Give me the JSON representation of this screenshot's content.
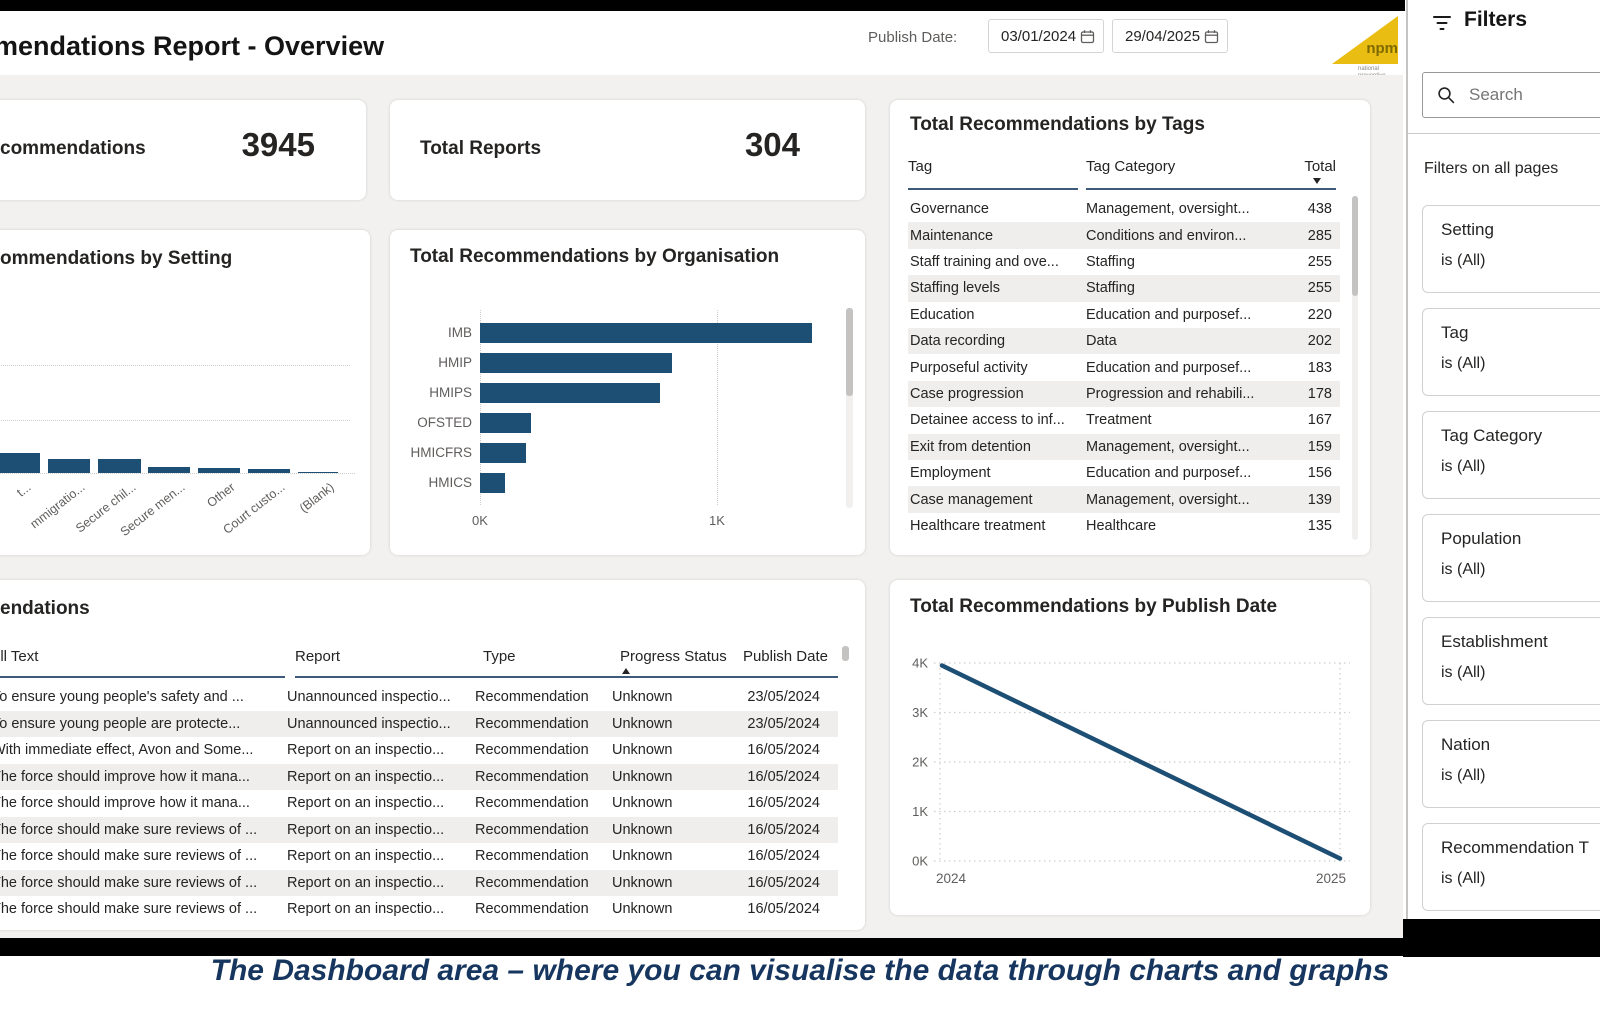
{
  "header": {
    "title": "mendations Report - Overview",
    "publish_date_label": "Publish Date:",
    "date_from": "03/01/2024",
    "date_to": "29/04/2025",
    "logo": {
      "text": "npm",
      "subtext": "national preventive mechanism"
    }
  },
  "kpi_cards": [
    {
      "label": "commendations",
      "value": "3945"
    },
    {
      "label": "Total Reports",
      "value": "304"
    }
  ],
  "tags_table": {
    "title": "Total Recommendations by Tags",
    "columns": [
      "Tag",
      "Tag Category",
      "Total"
    ],
    "sort": {
      "column": "Total",
      "direction": "desc"
    },
    "rows": [
      [
        "Governance",
        "Management, oversight...",
        "438"
      ],
      [
        "Maintenance",
        "Conditions and environ...",
        "285"
      ],
      [
        "Staff training and ove...",
        "Staffing",
        "255"
      ],
      [
        "Staffing levels",
        "Staffing",
        "255"
      ],
      [
        "Education",
        "Education and purposef...",
        "220"
      ],
      [
        "Data recording",
        "Data",
        "202"
      ],
      [
        "Purposeful activity",
        "Education and purposef...",
        "183"
      ],
      [
        "Case progression",
        "Progression and rehabili...",
        "178"
      ],
      [
        "Detainee access to inf...",
        "Treatment",
        "167"
      ],
      [
        "Exit from detention",
        "Management, oversight...",
        "159"
      ],
      [
        "Employment",
        "Education and purposef...",
        "156"
      ],
      [
        "Case management",
        "Management, oversight...",
        "139"
      ],
      [
        "Healthcare treatment",
        "Healthcare",
        "135"
      ]
    ]
  },
  "chart_data": [
    {
      "type": "bar",
      "title": "ommendations by Setting",
      "categories": [
        "t...",
        "mmigratio...",
        "Secure chil...",
        "Secure men...",
        "Other",
        "Court custo...",
        "(Blank)"
      ],
      "values": [
        380,
        265,
        265,
        115,
        95,
        75,
        20
      ],
      "ylim": [
        0,
        2000
      ],
      "grid": "horizontal-dotted",
      "note": "chart cropped at left edge of screenshot"
    },
    {
      "type": "bar-horizontal",
      "title": "Total Recommendations by Organisation",
      "categories": [
        "IMB",
        "HMIP",
        "HMIPS",
        "OFSTED",
        "HMICFRS",
        "HMICS"
      ],
      "values": [
        1400,
        810,
        760,
        215,
        195,
        105
      ],
      "xticks": [
        "0K",
        "1K"
      ],
      "xlim": [
        0,
        2000
      ],
      "grid": "vertical-dotted"
    },
    {
      "type": "line",
      "title": "Total Recommendations by Publish Date",
      "x": [
        "2024",
        "2025"
      ],
      "values": [
        3950,
        50
      ],
      "yticks": [
        "4K",
        "3K",
        "2K",
        "1K",
        "0K"
      ],
      "ylim": [
        0,
        4000
      ],
      "xlabel_left": "2024",
      "xlabel_right": "2025",
      "grid": "dotted"
    }
  ],
  "rec_table": {
    "title": "endations",
    "columns": [
      "ull Text",
      "Report",
      "Type",
      "Progress Status",
      "Publish Date"
    ],
    "sort": {
      "column": "Progress Status",
      "direction": "asc"
    },
    "rows": [
      [
        "To ensure young people's safety and ...",
        "Unannounced inspectio...",
        "Recommendation",
        "Unknown",
        "23/05/2024"
      ],
      [
        "To ensure young people are protecte...",
        "Unannounced inspectio...",
        "Recommendation",
        "Unknown",
        "23/05/2024"
      ],
      [
        "With immediate effect, Avon and Some...",
        "Report on an inspectio...",
        "Recommendation",
        "Unknown",
        "16/05/2024"
      ],
      [
        "The force should improve how it mana...",
        "Report on an inspectio...",
        "Recommendation",
        "Unknown",
        "16/05/2024"
      ],
      [
        "The force should improve how it mana...",
        "Report on an inspectio...",
        "Recommendation",
        "Unknown",
        "16/05/2024"
      ],
      [
        "The force should make sure reviews of ...",
        "Report on an inspectio...",
        "Recommendation",
        "Unknown",
        "16/05/2024"
      ],
      [
        "The force should make sure reviews of ...",
        "Report on an inspectio...",
        "Recommendation",
        "Unknown",
        "16/05/2024"
      ],
      [
        "The force should make sure reviews of ...",
        "Report on an inspectio...",
        "Recommendation",
        "Unknown",
        "16/05/2024"
      ],
      [
        "The force should make sure reviews of ...",
        "Report on an inspectio...",
        "Recommendation",
        "Unknown",
        "16/05/2024"
      ]
    ]
  },
  "filters": {
    "title": "Filters",
    "search_placeholder": "Search",
    "section_label": "Filters on all pages",
    "items": [
      {
        "field": "Setting",
        "value": "is (All)"
      },
      {
        "field": "Tag",
        "value": "is (All)"
      },
      {
        "field": "Tag Category",
        "value": "is (All)"
      },
      {
        "field": "Population",
        "value": "is (All)"
      },
      {
        "field": "Establishment",
        "value": "is (All)"
      },
      {
        "field": "Nation",
        "value": "is (All)"
      },
      {
        "field": "Recommendation T",
        "value": "is (All)"
      }
    ]
  },
  "caption": "The Dashboard area – where you can visualise the data through charts and graphs",
  "colors": {
    "accent": "#1D4E74",
    "page_bg": "#F2F1F0",
    "caption_text": "#16365F",
    "logo_gold": "#E9BD12",
    "black_bar": "#000000"
  }
}
